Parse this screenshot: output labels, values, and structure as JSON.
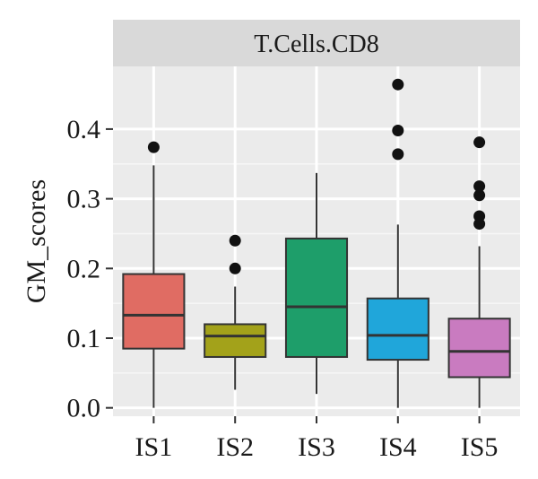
{
  "chart_data": {
    "type": "boxplot",
    "facet_label": "T.Cells.CD8",
    "xlabel": "",
    "ylabel": "GM_scores",
    "ylim": [
      -0.012,
      0.49
    ],
    "yticks": [
      0.0,
      0.1,
      0.2,
      0.3,
      0.4
    ],
    "ytick_labels": [
      "0.0",
      "0.1",
      "0.2",
      "0.3",
      "0.4"
    ],
    "grid": true,
    "legend": "none",
    "categories": [
      "IS1",
      "IS2",
      "IS3",
      "IS4",
      "IS5"
    ],
    "boxes": [
      {
        "category": "IS1",
        "color": "#E06C63",
        "whisker_low": 0.0,
        "q1": 0.085,
        "median": 0.133,
        "q3": 0.192,
        "whisker_high": 0.348,
        "outliers": [
          0.374
        ]
      },
      {
        "category": "IS2",
        "color": "#A3A21A",
        "whisker_low": 0.026,
        "q1": 0.073,
        "median": 0.103,
        "q3": 0.12,
        "whisker_high": 0.174,
        "outliers": [
          0.2,
          0.24
        ]
      },
      {
        "category": "IS3",
        "color": "#1E9E6A",
        "whisker_low": 0.02,
        "q1": 0.073,
        "median": 0.145,
        "q3": 0.243,
        "whisker_high": 0.337,
        "outliers": []
      },
      {
        "category": "IS4",
        "color": "#20A6DA",
        "whisker_low": 0.0,
        "q1": 0.069,
        "median": 0.104,
        "q3": 0.157,
        "whisker_high": 0.263,
        "outliers": [
          0.364,
          0.398,
          0.464
        ]
      },
      {
        "category": "IS5",
        "color": "#C97BC0",
        "whisker_low": 0.0,
        "q1": 0.044,
        "median": 0.081,
        "q3": 0.128,
        "whisker_high": 0.232,
        "outliers": [
          0.264,
          0.275,
          0.305,
          0.318,
          0.381
        ]
      }
    ]
  }
}
